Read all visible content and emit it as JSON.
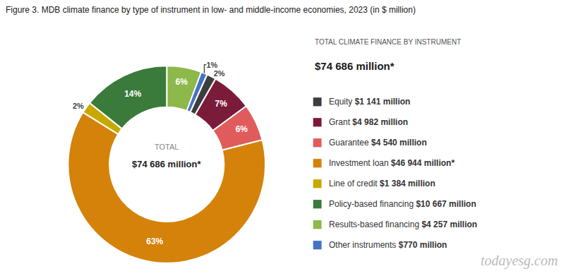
{
  "chart_data": {
    "type": "pie",
    "title": "Figure 3. MDB climate finance by type of instrument in low- and middle-income economies, 2023 (in $ million)",
    "categories": [
      "Results-based financing",
      "Other instruments",
      "Equity",
      "Grant",
      "Guarantee",
      "Investment loan",
      "Line of credit",
      "Policy-based financing"
    ],
    "values": [
      4257,
      770,
      1141,
      4982,
      4540,
      46944,
      1384,
      10667
    ],
    "value_labels": [
      "6%",
      "1%",
      "2%",
      "7%",
      "6%",
      "63%",
      "2%",
      "14%"
    ],
    "colors": [
      "#8DB84A",
      "#4472C4",
      "#3D3D3D",
      "#7B1B3A",
      "#E05C5C",
      "#D4820A",
      "#C8A800",
      "#3A7A3A"
    ],
    "data_labels": true,
    "center_label": "TOTAL",
    "center_value": "$74 686 million*",
    "legend_title": "TOTAL CLIMATE FINANCE BY INSTRUMENT",
    "legend_total": "$74 686 million*",
    "legend_items": [
      {
        "name": "Equity",
        "value_label": "$1 141 million",
        "color": "#3D3D3D"
      },
      {
        "name": "Grant",
        "value_label": "$4 982 million",
        "color": "#7B1B3A"
      },
      {
        "name": "Guarantee",
        "value_label": "$4 540 million",
        "color": "#E05C5C"
      },
      {
        "name": "Investment loan",
        "value_label": "$46 944 million*",
        "color": "#D4820A"
      },
      {
        "name": "Line of credit",
        "value_label": "$1 384 million",
        "color": "#C8A800"
      },
      {
        "name": "Policy-based financing",
        "value_label": "$10 667 million",
        "color": "#3A7A3A"
      },
      {
        "name": "Results-based financing",
        "value_label": "$4 257 million",
        "color": "#8DB84A"
      },
      {
        "name": "Other instruments",
        "value_label": "$770 million",
        "color": "#4472C4"
      }
    ],
    "watermark": "todayesg.com"
  }
}
